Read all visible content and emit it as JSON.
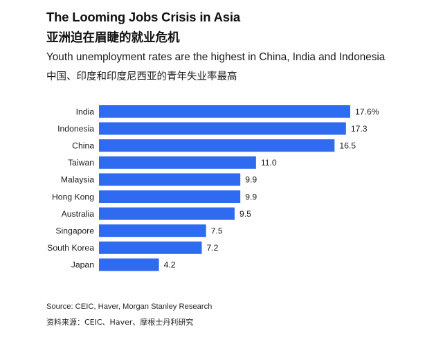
{
  "header": {
    "title": "The Looming Jobs Crisis in Asia",
    "title_cn": "亚洲迫在眉睫的就业危机",
    "subtitle": "Youth unemployment rates are the highest in China, India and Indonesia",
    "subtitle_cn": "中国、印度和印度尼西亚的青年失业率最高"
  },
  "footer": {
    "source": "Source: CEIC, Haver, Morgan Stanley Research",
    "source_cn": "资料来源：CEIC、Haver、摩根士丹利研究"
  },
  "colors": {
    "bar": "#2f6bf0",
    "text": "#1a1a1a"
  },
  "chart_data": {
    "type": "bar",
    "orientation": "horizontal",
    "title": "The Looming Jobs Crisis in Asia",
    "subtitle": "Youth unemployment rates are the highest in China, India and Indonesia",
    "xlabel": "",
    "ylabel": "",
    "unit": "%",
    "categories": [
      "India",
      "Indonesia",
      "China",
      "Taiwan",
      "Malaysia",
      "Hong Kong",
      "Australia",
      "Singapore",
      "South Korea",
      "Japan"
    ],
    "values": [
      17.6,
      17.3,
      16.5,
      11.0,
      9.9,
      9.9,
      9.5,
      7.5,
      7.2,
      4.2
    ],
    "value_labels": [
      "17.6%",
      "17.3",
      "16.5",
      "11.0",
      "9.9",
      "9.9",
      "9.5",
      "7.5",
      "7.2",
      "4.2"
    ],
    "xlim": [
      0,
      17.6
    ],
    "grid": false,
    "legend": "none",
    "axis_visible": false
  }
}
